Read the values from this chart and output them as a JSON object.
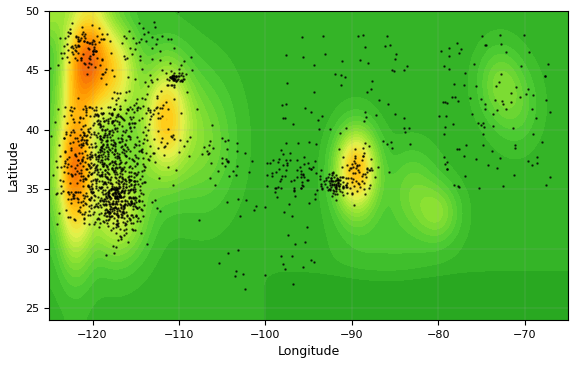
{
  "lon_min": -125,
  "lon_max": -65,
  "lat_min": 24,
  "lat_max": 50,
  "xlabel": "Longitude",
  "ylabel": "Latitude",
  "x_ticks": [
    -120,
    -110,
    -100,
    -90,
    -80,
    -70
  ],
  "y_ticks": [
    25,
    30,
    35,
    40,
    45,
    50
  ],
  "figsize": [
    5.75,
    3.65
  ],
  "dpi": 100,
  "hazard_colors": [
    "#1a9641",
    "#66bd63",
    "#a6d96a",
    "#d9ef8b",
    "#fee08b",
    "#fdae61",
    "#f46d43",
    "#d73027"
  ],
  "bg_color": "#ffffff",
  "grid_color": "#aaaaaa",
  "dot_color": "#000000",
  "dot_size": 1.5
}
